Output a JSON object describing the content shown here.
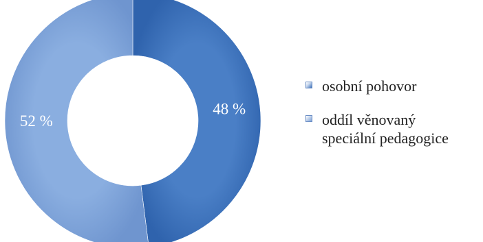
{
  "chart_data": {
    "type": "pie",
    "donut": true,
    "series": [
      {
        "name": "osobní pohovor",
        "value": 48,
        "label": "48 %",
        "color": "#3a6fb8",
        "color_light": "#5b8fd6"
      },
      {
        "name": "oddíl věnovaný\nspeciální pedagogice",
        "value": 52,
        "label": "52 %",
        "color": "#7b9fd4",
        "color_light": "#9cb8e2"
      }
    ],
    "legend_position": "right",
    "start": "top",
    "direction": "clockwise"
  }
}
